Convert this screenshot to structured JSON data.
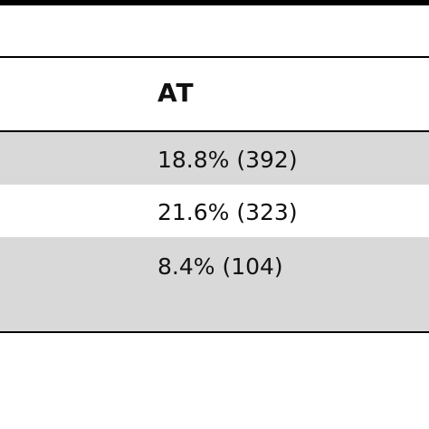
{
  "table": {
    "header": {
      "at_label": "AT"
    },
    "rows": [
      {
        "at_value": "18.8% (392)",
        "shaded": true
      },
      {
        "at_value": "21.6% (323)",
        "shaded": false
      },
      {
        "at_value": "8.4% (104)",
        "shaded": true
      }
    ],
    "colors": {
      "shade": "#d9d9d9",
      "rule": "#000000"
    }
  }
}
